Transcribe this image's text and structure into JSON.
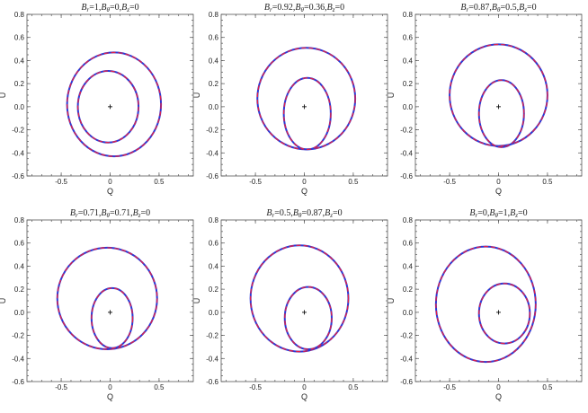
{
  "chart_data": [
    {
      "type": "line",
      "title": "B_r=1,B_θ=0,B_z=0",
      "xlabel": "Q",
      "ylabel": "U",
      "xlim": [
        -0.85,
        0.85
      ],
      "ylim": [
        -0.6,
        0.8
      ],
      "xticks": [
        "-0.5",
        "0",
        "0.5"
      ],
      "yticks": [
        "-0.6",
        "-0.4",
        "-0.2",
        "0.0",
        "0.2",
        "0.4",
        "0.6",
        "0.8"
      ],
      "grid": false,
      "curves": [
        {
          "cx": 0.04,
          "cy": 0.02,
          "rx": 0.48,
          "ry": 0.45
        },
        {
          "cx": -0.02,
          "cy": 0.0,
          "rx": 0.31,
          "ry": 0.31
        }
      ]
    },
    {
      "type": "line",
      "title": "B_r=0.92,B_θ=0.36,B_z=0",
      "xlabel": "Q",
      "ylabel": "U",
      "xlim": [
        -0.85,
        0.85
      ],
      "ylim": [
        -0.6,
        0.8
      ],
      "xticks": [
        "-0.5",
        "0",
        "0.5"
      ],
      "yticks": [
        "-0.6",
        "-0.4",
        "-0.2",
        "0.0",
        "0.2",
        "0.4",
        "0.6",
        "0.8"
      ],
      "grid": false,
      "curves": [
        {
          "cx": 0.02,
          "cy": 0.07,
          "rx": 0.5,
          "ry": 0.44
        },
        {
          "cx": 0.03,
          "cy": -0.06,
          "rx": 0.24,
          "ry": 0.31
        }
      ]
    },
    {
      "type": "line",
      "title": "B_r=0.87,B_θ=0.5,B_z=0",
      "xlabel": "Q",
      "ylabel": "U",
      "xlim": [
        -0.85,
        0.85
      ],
      "ylim": [
        -0.6,
        0.8
      ],
      "xticks": [
        "-0.5",
        "0",
        "0.5"
      ],
      "yticks": [
        "-0.6",
        "-0.4",
        "-0.2",
        "0.0",
        "0.2",
        "0.4",
        "0.6",
        "0.8"
      ],
      "grid": false,
      "curves": [
        {
          "cx": 0.0,
          "cy": 0.1,
          "rx": 0.5,
          "ry": 0.44
        },
        {
          "cx": 0.03,
          "cy": -0.06,
          "rx": 0.23,
          "ry": 0.29
        }
      ]
    },
    {
      "type": "line",
      "title": "B_r=0.71,B_θ=0.71,B_z=0",
      "xlabel": "Q",
      "ylabel": "U",
      "xlim": [
        -0.85,
        0.85
      ],
      "ylim": [
        -0.6,
        0.8
      ],
      "xticks": [
        "-0.5",
        "0",
        "0.5"
      ],
      "yticks": [
        "-0.6",
        "-0.4",
        "-0.2",
        "0.0",
        "0.2",
        "0.4",
        "0.6",
        "0.8"
      ],
      "grid": false,
      "curves": [
        {
          "cx": -0.03,
          "cy": 0.12,
          "rx": 0.51,
          "ry": 0.44
        },
        {
          "cx": 0.02,
          "cy": -0.05,
          "rx": 0.21,
          "ry": 0.26
        }
      ]
    },
    {
      "type": "line",
      "title": "B_r=0.5,B_θ=0.87,B_z=0",
      "xlabel": "Q",
      "ylabel": "U",
      "xlim": [
        -0.85,
        0.85
      ],
      "ylim": [
        -0.6,
        0.8
      ],
      "xticks": [
        "-0.5",
        "0",
        "0.5"
      ],
      "yticks": [
        "-0.6",
        "-0.4",
        "-0.2",
        "0.0",
        "0.2",
        "0.4",
        "0.6",
        "0.8"
      ],
      "grid": false,
      "curves": [
        {
          "cx": -0.05,
          "cy": 0.12,
          "rx": 0.5,
          "ry": 0.46
        },
        {
          "cx": 0.04,
          "cy": -0.05,
          "rx": 0.24,
          "ry": 0.27
        }
      ]
    },
    {
      "type": "line",
      "title": "B_r=0,B_θ=1,B_z=0",
      "xlabel": "Q",
      "ylabel": "U",
      "xlim": [
        -0.85,
        0.85
      ],
      "ylim": [
        -0.6,
        0.8
      ],
      "xticks": [
        "-0.5",
        "0",
        "0.5"
      ],
      "yticks": [
        "-0.6",
        "-0.4",
        "-0.2",
        "0.0",
        "0.2",
        "0.4",
        "0.6",
        "0.8"
      ],
      "grid": false,
      "curves": [
        {
          "cx": -0.13,
          "cy": 0.07,
          "rx": 0.51,
          "ry": 0.5
        },
        {
          "cx": 0.06,
          "cy": -0.01,
          "rx": 0.26,
          "ry": 0.26
        }
      ]
    }
  ],
  "colors": {
    "outer_solid": "#2a3ad6",
    "dashed_overlay": "#e0204a",
    "frame": "#555555",
    "text": "#222222"
  }
}
